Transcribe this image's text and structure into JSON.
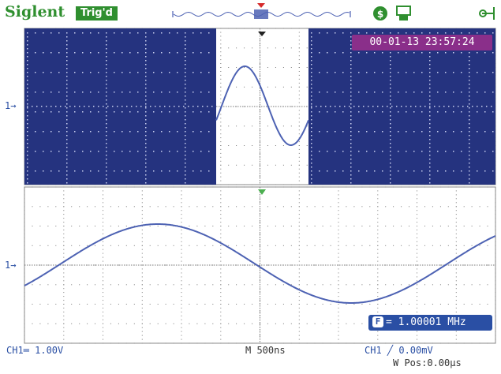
{
  "header": {
    "brand": "Siglent",
    "trigger_status": "Trig'd"
  },
  "datetime": "00-01-13 23:57:24",
  "frequency": {
    "label": "= 1.00001 MHz"
  },
  "status": {
    "ch1_scale": "CH1═ 1.00V",
    "timebase": "M 500ns",
    "trigger": "CH1 ╱ 0.00mV",
    "window_pos": "W Pos:0.00μs"
  },
  "markers": {
    "ch1": "1→"
  },
  "colors": {
    "brand": "#2f8f2f",
    "zoom_mask": "#25337f",
    "trace": "#4d62b3",
    "date_badge": "#8a2f8a",
    "freq_badge": "#2a4fa4"
  },
  "icons": [
    "usb-icon",
    "printer-icon",
    "plug-icon"
  ]
}
